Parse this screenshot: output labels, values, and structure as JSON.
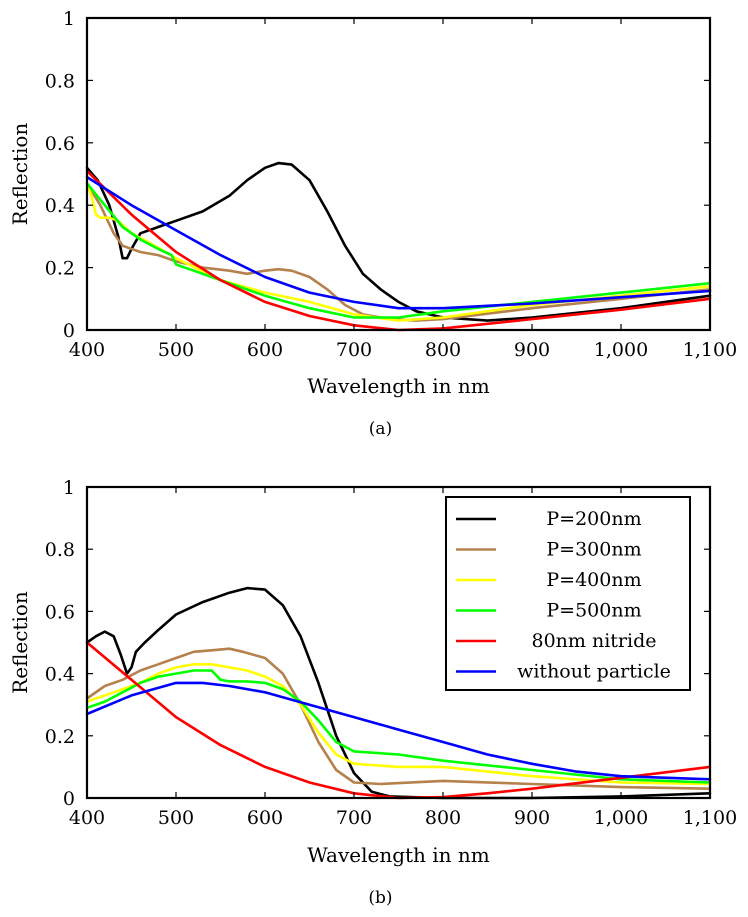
{
  "chart_data": [
    {
      "type": "line",
      "caption": "(a)",
      "xlabel": "Wavelength in nm",
      "ylabel": "Reflection",
      "xlim": [
        400,
        1100
      ],
      "ylim": [
        0,
        1
      ],
      "xticks": [
        400,
        500,
        600,
        700,
        800,
        900,
        1000,
        1100
      ],
      "xtick_labels": [
        "400",
        "500",
        "600",
        "700",
        "800",
        "900",
        "1,000",
        "1,100"
      ],
      "yticks": [
        0,
        0.2,
        0.4,
        0.6,
        0.8,
        1
      ],
      "ytick_labels": [
        "0",
        "0.2",
        "0.4",
        "0.6",
        "0.8",
        "1"
      ],
      "legend": null,
      "series": [
        {
          "name": "P=200nm",
          "color": "#000000",
          "points": [
            [
              400,
              0.52
            ],
            [
              412,
              0.48
            ],
            [
              425,
              0.4
            ],
            [
              435,
              0.3
            ],
            [
              440,
              0.23
            ],
            [
              445,
              0.23
            ],
            [
              450,
              0.26
            ],
            [
              460,
              0.31
            ],
            [
              480,
              0.33
            ],
            [
              500,
              0.35
            ],
            [
              530,
              0.38
            ],
            [
              560,
              0.43
            ],
            [
              580,
              0.48
            ],
            [
              600,
              0.52
            ],
            [
              615,
              0.535
            ],
            [
              630,
              0.53
            ],
            [
              650,
              0.48
            ],
            [
              670,
              0.38
            ],
            [
              690,
              0.27
            ],
            [
              710,
              0.18
            ],
            [
              730,
              0.13
            ],
            [
              750,
              0.09
            ],
            [
              770,
              0.06
            ],
            [
              800,
              0.04
            ],
            [
              850,
              0.03
            ],
            [
              900,
              0.04
            ],
            [
              1000,
              0.07
            ],
            [
              1100,
              0.11
            ]
          ]
        },
        {
          "name": "P=300nm",
          "color": "#B5814C",
          "points": [
            [
              400,
              0.47
            ],
            [
              415,
              0.4
            ],
            [
              430,
              0.31
            ],
            [
              440,
              0.27
            ],
            [
              460,
              0.25
            ],
            [
              480,
              0.24
            ],
            [
              500,
              0.22
            ],
            [
              530,
              0.2
            ],
            [
              560,
              0.19
            ],
            [
              580,
              0.18
            ],
            [
              600,
              0.19
            ],
            [
              615,
              0.195
            ],
            [
              630,
              0.19
            ],
            [
              650,
              0.17
            ],
            [
              670,
              0.13
            ],
            [
              690,
              0.08
            ],
            [
              710,
              0.05
            ],
            [
              740,
              0.035
            ],
            [
              770,
              0.03
            ],
            [
              800,
              0.035
            ],
            [
              900,
              0.07
            ],
            [
              1000,
              0.1
            ],
            [
              1100,
              0.13
            ]
          ]
        },
        {
          "name": "P=400nm",
          "color": "#FFFF00",
          "points": [
            [
              400,
              0.47
            ],
            [
              405,
              0.43
            ],
            [
              410,
              0.37
            ],
            [
              415,
              0.36
            ],
            [
              425,
              0.36
            ],
            [
              435,
              0.35
            ],
            [
              450,
              0.31
            ],
            [
              470,
              0.28
            ],
            [
              500,
              0.23
            ],
            [
              550,
              0.16
            ],
            [
              600,
              0.12
            ],
            [
              650,
              0.09
            ],
            [
              700,
              0.05
            ],
            [
              750,
              0.03
            ],
            [
              800,
              0.04
            ],
            [
              900,
              0.08
            ],
            [
              1000,
              0.11
            ],
            [
              1100,
              0.14
            ]
          ]
        },
        {
          "name": "P=500nm",
          "color": "#00FF00",
          "points": [
            [
              400,
              0.47
            ],
            [
              420,
              0.4
            ],
            [
              440,
              0.33
            ],
            [
              460,
              0.29
            ],
            [
              480,
              0.26
            ],
            [
              495,
              0.24
            ],
            [
              500,
              0.21
            ],
            [
              520,
              0.19
            ],
            [
              550,
              0.16
            ],
            [
              600,
              0.11
            ],
            [
              650,
              0.07
            ],
            [
              700,
              0.04
            ],
            [
              750,
              0.04
            ],
            [
              800,
              0.06
            ],
            [
              900,
              0.09
            ],
            [
              1000,
              0.12
            ],
            [
              1100,
              0.15
            ]
          ]
        },
        {
          "name": "80nm nitride",
          "color": "#FF0000",
          "points": [
            [
              400,
              0.51
            ],
            [
              450,
              0.37
            ],
            [
              500,
              0.25
            ],
            [
              550,
              0.16
            ],
            [
              600,
              0.09
            ],
            [
              650,
              0.045
            ],
            [
              700,
              0.015
            ],
            [
              750,
              0.0
            ],
            [
              800,
              0.005
            ],
            [
              850,
              0.02
            ],
            [
              900,
              0.035
            ],
            [
              1000,
              0.065
            ],
            [
              1100,
              0.1
            ]
          ]
        },
        {
          "name": "without particle",
          "color": "#0000FF",
          "points": [
            [
              400,
              0.49
            ],
            [
              450,
              0.4
            ],
            [
              500,
              0.32
            ],
            [
              550,
              0.24
            ],
            [
              600,
              0.17
            ],
            [
              650,
              0.12
            ],
            [
              700,
              0.09
            ],
            [
              750,
              0.07
            ],
            [
              800,
              0.07
            ],
            [
              900,
              0.085
            ],
            [
              1000,
              0.105
            ],
            [
              1100,
              0.125
            ]
          ]
        }
      ]
    },
    {
      "type": "line",
      "caption": "(b)",
      "xlabel": "Wavelength in nm",
      "ylabel": "Reflection",
      "xlim": [
        400,
        1100
      ],
      "ylim": [
        0,
        1
      ],
      "xticks": [
        400,
        500,
        600,
        700,
        800,
        900,
        1000,
        1100
      ],
      "xtick_labels": [
        "400",
        "500",
        "600",
        "700",
        "800",
        "900",
        "1,000",
        "1,100"
      ],
      "yticks": [
        0,
        0.2,
        0.4,
        0.6,
        0.8,
        1
      ],
      "ytick_labels": [
        "0",
        "0.2",
        "0.4",
        "0.6",
        "0.8",
        "1"
      ],
      "legend": "top-right",
      "series": [
        {
          "name": "P=200nm",
          "color": "#000000",
          "points": [
            [
              400,
              0.5
            ],
            [
              410,
              0.52
            ],
            [
              420,
              0.535
            ],
            [
              430,
              0.52
            ],
            [
              438,
              0.46
            ],
            [
              445,
              0.4
            ],
            [
              450,
              0.42
            ],
            [
              455,
              0.47
            ],
            [
              465,
              0.5
            ],
            [
              480,
              0.54
            ],
            [
              500,
              0.59
            ],
            [
              530,
              0.63
            ],
            [
              560,
              0.66
            ],
            [
              580,
              0.675
            ],
            [
              600,
              0.67
            ],
            [
              620,
              0.62
            ],
            [
              640,
              0.52
            ],
            [
              660,
              0.37
            ],
            [
              680,
              0.2
            ],
            [
              700,
              0.08
            ],
            [
              720,
              0.02
            ],
            [
              740,
              0.005
            ],
            [
              800,
              0.0
            ],
            [
              900,
              0.0
            ],
            [
              1000,
              0.005
            ],
            [
              1100,
              0.015
            ]
          ]
        },
        {
          "name": "P=300nm",
          "color": "#B5814C",
          "points": [
            [
              400,
              0.32
            ],
            [
              420,
              0.36
            ],
            [
              440,
              0.38
            ],
            [
              460,
              0.41
            ],
            [
              480,
              0.43
            ],
            [
              500,
              0.45
            ],
            [
              520,
              0.47
            ],
            [
              540,
              0.475
            ],
            [
              560,
              0.48
            ],
            [
              575,
              0.47
            ],
            [
              600,
              0.45
            ],
            [
              620,
              0.4
            ],
            [
              640,
              0.3
            ],
            [
              660,
              0.18
            ],
            [
              680,
              0.09
            ],
            [
              700,
              0.05
            ],
            [
              730,
              0.045
            ],
            [
              800,
              0.055
            ],
            [
              900,
              0.045
            ],
            [
              1000,
              0.035
            ],
            [
              1100,
              0.03
            ]
          ]
        },
        {
          "name": "P=400nm",
          "color": "#FFFF00",
          "points": [
            [
              400,
              0.31
            ],
            [
              430,
              0.34
            ],
            [
              460,
              0.37
            ],
            [
              480,
              0.4
            ],
            [
              500,
              0.42
            ],
            [
              520,
              0.43
            ],
            [
              540,
              0.43
            ],
            [
              560,
              0.42
            ],
            [
              580,
              0.41
            ],
            [
              600,
              0.39
            ],
            [
              620,
              0.36
            ],
            [
              640,
              0.3
            ],
            [
              660,
              0.21
            ],
            [
              680,
              0.14
            ],
            [
              700,
              0.11
            ],
            [
              750,
              0.1
            ],
            [
              800,
              0.1
            ],
            [
              900,
              0.07
            ],
            [
              1000,
              0.05
            ],
            [
              1100,
              0.045
            ]
          ]
        },
        {
          "name": "P=500nm",
          "color": "#00FF00",
          "points": [
            [
              400,
              0.29
            ],
            [
              420,
              0.31
            ],
            [
              440,
              0.34
            ],
            [
              460,
              0.37
            ],
            [
              480,
              0.39
            ],
            [
              500,
              0.4
            ],
            [
              520,
              0.41
            ],
            [
              540,
              0.41
            ],
            [
              550,
              0.38
            ],
            [
              560,
              0.375
            ],
            [
              580,
              0.375
            ],
            [
              600,
              0.37
            ],
            [
              620,
              0.35
            ],
            [
              640,
              0.31
            ],
            [
              660,
              0.25
            ],
            [
              680,
              0.18
            ],
            [
              700,
              0.15
            ],
            [
              750,
              0.14
            ],
            [
              800,
              0.12
            ],
            [
              900,
              0.09
            ],
            [
              1000,
              0.06
            ],
            [
              1100,
              0.05
            ]
          ]
        },
        {
          "name": "80nm nitride",
          "color": "#FF0000",
          "points": [
            [
              400,
              0.5
            ],
            [
              450,
              0.38
            ],
            [
              500,
              0.26
            ],
            [
              550,
              0.17
            ],
            [
              600,
              0.1
            ],
            [
              650,
              0.05
            ],
            [
              700,
              0.015
            ],
            [
              750,
              0.0
            ],
            [
              800,
              0.003
            ],
            [
              850,
              0.015
            ],
            [
              900,
              0.03
            ],
            [
              1000,
              0.065
            ],
            [
              1100,
              0.1
            ]
          ]
        },
        {
          "name": "without particle",
          "color": "#0000FF",
          "points": [
            [
              400,
              0.27
            ],
            [
              450,
              0.33
            ],
            [
              500,
              0.37
            ],
            [
              530,
              0.37
            ],
            [
              560,
              0.36
            ],
            [
              600,
              0.34
            ],
            [
              650,
              0.3
            ],
            [
              700,
              0.26
            ],
            [
              750,
              0.22
            ],
            [
              800,
              0.18
            ],
            [
              850,
              0.14
            ],
            [
              900,
              0.11
            ],
            [
              950,
              0.085
            ],
            [
              1000,
              0.07
            ],
            [
              1100,
              0.06
            ]
          ]
        }
      ]
    }
  ]
}
